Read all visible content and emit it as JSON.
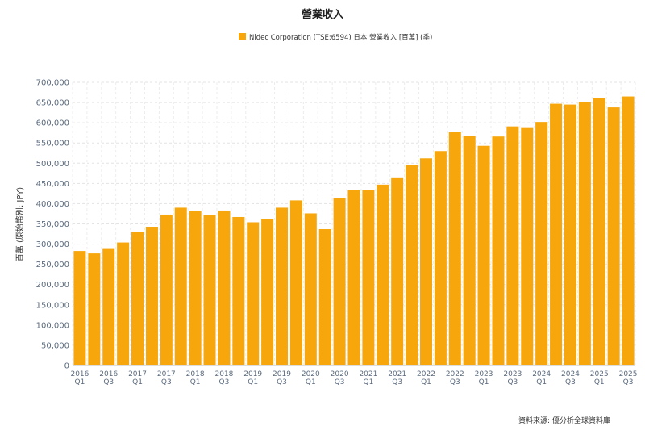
{
  "chart_data": {
    "type": "bar",
    "title": "營業收入",
    "y_label": "百萬 (原始幣別: JPY)",
    "source": "資料來源: 優分析全球資料庫",
    "legend_position": "top",
    "grid": true,
    "series": [
      {
        "name": "Nidec Corporation (TSE:6594) 日本 營業收入 [百萬] (季)",
        "color": "#f7a70b",
        "values": [
          283000,
          277000,
          288000,
          304000,
          331000,
          343000,
          373000,
          390000,
          382000,
          372000,
          383000,
          367000,
          354000,
          361000,
          390000,
          408000,
          376000,
          337000,
          414000,
          433000,
          433000,
          447000,
          463000,
          496000,
          512000,
          530000,
          578000,
          568000,
          543000,
          566000,
          591000,
          587000,
          602000,
          647000,
          645000,
          651000,
          662000,
          638000,
          665000
        ]
      }
    ],
    "categories": [
      [
        "2016",
        "Q1"
      ],
      null,
      [
        "2016",
        "Q3"
      ],
      null,
      [
        "2017",
        "Q1"
      ],
      null,
      [
        "2017",
        "Q3"
      ],
      null,
      [
        "2018",
        "Q1"
      ],
      null,
      [
        "2018",
        "Q3"
      ],
      null,
      [
        "2019",
        "Q1"
      ],
      null,
      [
        "2019",
        "Q3"
      ],
      null,
      [
        "2020",
        "Q1"
      ],
      null,
      [
        "2020",
        "Q3"
      ],
      null,
      [
        "2021",
        "Q1"
      ],
      null,
      [
        "2021",
        "Q3"
      ],
      null,
      [
        "2022",
        "Q1"
      ],
      null,
      [
        "2022",
        "Q3"
      ],
      null,
      [
        "2023",
        "Q1"
      ],
      null,
      [
        "2023",
        "Q3"
      ],
      null,
      [
        "2024",
        "Q1"
      ],
      null,
      [
        "2024",
        "Q3"
      ],
      null,
      [
        "2025",
        "Q1"
      ],
      null,
      [
        "2025",
        "Q3"
      ]
    ],
    "ylim": [
      0,
      700000
    ],
    "yticks": [
      0,
      {
        "value": 50000,
        "label": "50,000"
      },
      {
        "value": 100000,
        "label": "100,000"
      },
      {
        "value": 150000,
        "label": "150,000"
      },
      {
        "value": 200000,
        "label": "200,000"
      },
      {
        "value": 250000,
        "label": "250,000"
      },
      {
        "value": 300000,
        "label": "300,000"
      },
      {
        "value": 350000,
        "label": "350,000"
      },
      {
        "value": 400000,
        "label": "400,000"
      },
      {
        "value": 450000,
        "label": "450,000"
      },
      {
        "value": 500000,
        "label": "500,000"
      },
      {
        "value": 550000,
        "label": "550,000"
      },
      {
        "value": 600000,
        "label": "600,000"
      },
      {
        "value": 650000,
        "label": "650,000"
      },
      {
        "value": 700000,
        "label": "700,000"
      }
    ]
  }
}
